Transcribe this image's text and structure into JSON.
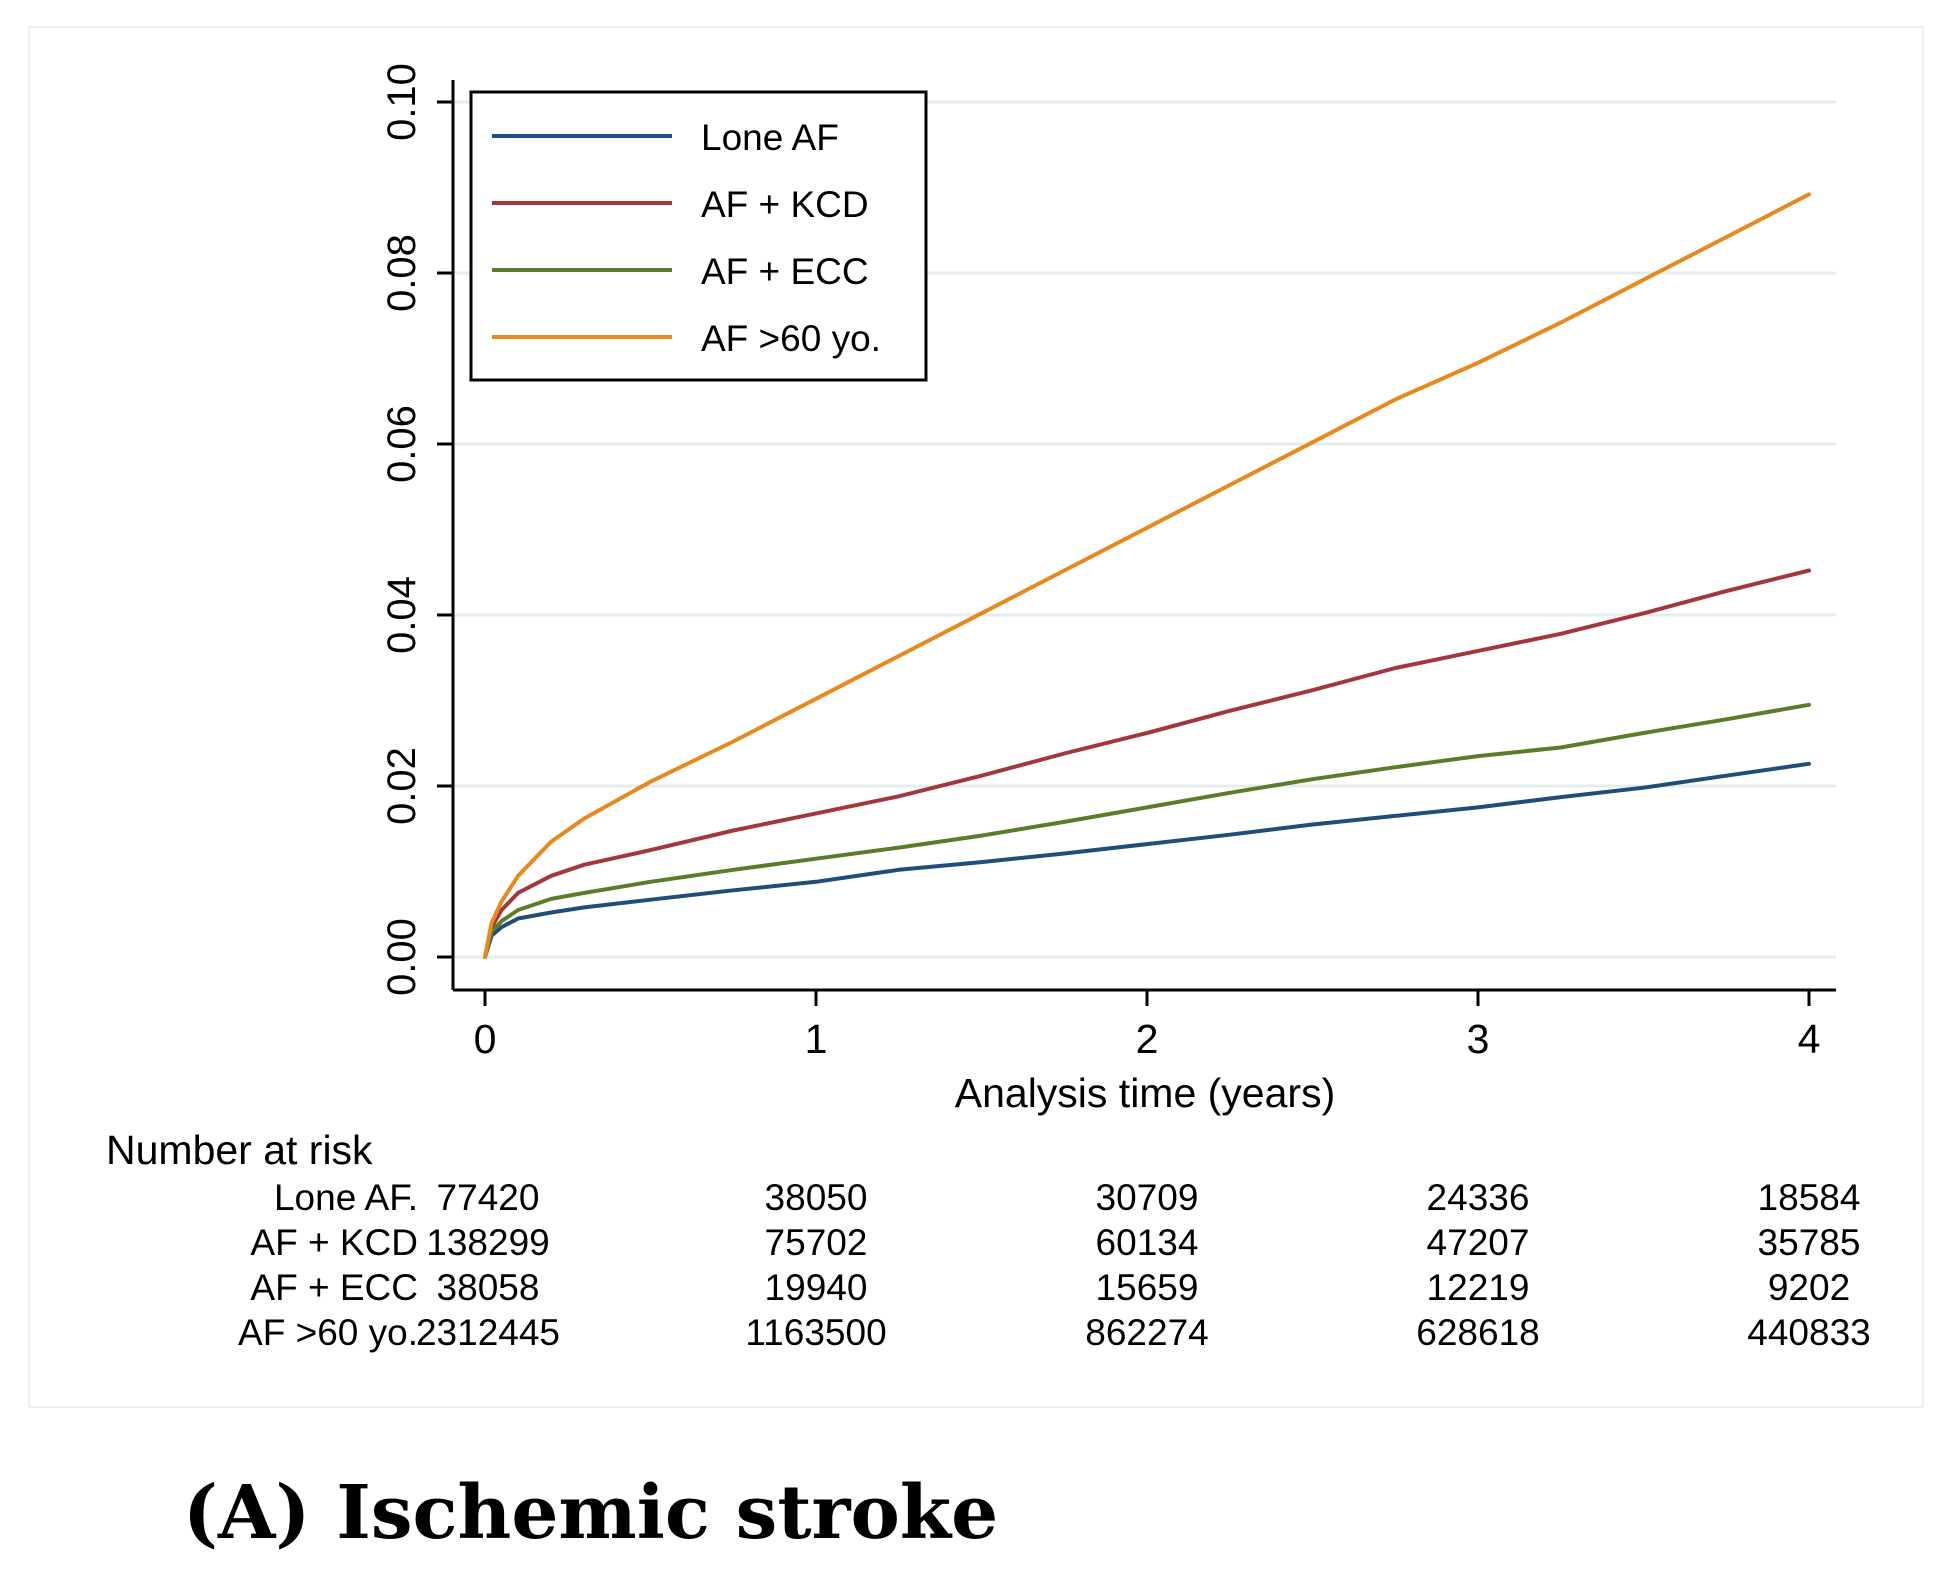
{
  "chart_data": {
    "type": "line",
    "title": "",
    "xlabel": "Analysis time (years)",
    "ylabel": "",
    "xlim": [
      0,
      4
    ],
    "ylim": [
      0,
      0.1
    ],
    "x_ticks": [
      0,
      1,
      2,
      3,
      4
    ],
    "x_tick_labels": [
      "0",
      "1",
      "2",
      "3",
      "4"
    ],
    "y_ticks": [
      0,
      0.02,
      0.04,
      0.06,
      0.08,
      0.1
    ],
    "y_tick_labels": [
      "0.00",
      "0.02",
      "0.04",
      "0.06",
      "0.08",
      "0.10"
    ],
    "grid": true,
    "legend_position": "top-left",
    "series": [
      {
        "name": "Lone AF",
        "color": "#1f4e79",
        "x": [
          0,
          0.02,
          0.05,
          0.1,
          0.2,
          0.3,
          0.5,
          0.75,
          1.0,
          1.25,
          1.5,
          1.75,
          2.0,
          2.25,
          2.5,
          2.75,
          3.0,
          3.25,
          3.5,
          3.75,
          4.0
        ],
        "y": [
          0,
          0.0025,
          0.0035,
          0.0045,
          0.0052,
          0.0058,
          0.0067,
          0.0078,
          0.0088,
          0.0102,
          0.0111,
          0.0121,
          0.0132,
          0.0143,
          0.0155,
          0.0165,
          0.0175,
          0.0187,
          0.0198,
          0.0212,
          0.0226
        ]
      },
      {
        "name": "AF + KCD",
        "color": "#a3373e",
        "x": [
          0,
          0.02,
          0.05,
          0.1,
          0.2,
          0.3,
          0.5,
          0.75,
          1.0,
          1.25,
          1.5,
          1.75,
          2.0,
          2.25,
          2.5,
          2.75,
          3.0,
          3.25,
          3.5,
          3.75,
          4.0
        ],
        "y": [
          0,
          0.0035,
          0.0055,
          0.0075,
          0.0095,
          0.0108,
          0.0125,
          0.0148,
          0.0168,
          0.0188,
          0.0212,
          0.0238,
          0.0262,
          0.0288,
          0.0312,
          0.0338,
          0.0358,
          0.0378,
          0.0402,
          0.0428,
          0.0452
        ]
      },
      {
        "name": "AF + ECC",
        "color": "#5b7c2b",
        "x": [
          0,
          0.02,
          0.05,
          0.1,
          0.2,
          0.3,
          0.5,
          0.75,
          1.0,
          1.25,
          1.5,
          1.75,
          2.0,
          2.25,
          2.5,
          2.75,
          3.0,
          3.25,
          3.5,
          3.75,
          4.0
        ],
        "y": [
          0,
          0.003,
          0.0042,
          0.0055,
          0.0068,
          0.0075,
          0.0088,
          0.0102,
          0.0115,
          0.0128,
          0.0142,
          0.0158,
          0.0175,
          0.0192,
          0.0208,
          0.0222,
          0.0235,
          0.0245,
          0.0262,
          0.0278,
          0.0295
        ]
      },
      {
        "name": "AF >60 yo.",
        "color": "#e8891d",
        "x": [
          0,
          0.02,
          0.05,
          0.1,
          0.2,
          0.3,
          0.5,
          0.75,
          1.0,
          1.25,
          1.5,
          1.75,
          2.0,
          2.25,
          2.5,
          2.75,
          3.0,
          3.25,
          3.5,
          3.75,
          4.0
        ],
        "y": [
          0,
          0.004,
          0.0065,
          0.0095,
          0.0135,
          0.0162,
          0.0205,
          0.0252,
          0.0302,
          0.0352,
          0.0402,
          0.0452,
          0.0502,
          0.0552,
          0.0602,
          0.0652,
          0.0695,
          0.0742,
          0.0792,
          0.0842,
          0.0892
        ]
      }
    ]
  },
  "risk_table": {
    "title": "Number at risk",
    "rows": [
      {
        "label": "Lone AF.",
        "values": [
          "77420",
          "38050",
          "30709",
          "24336",
          "18584"
        ]
      },
      {
        "label": "AF + KCD",
        "values": [
          "138299",
          "75702",
          "60134",
          "47207",
          "35785"
        ]
      },
      {
        "label": "AF + ECC",
        "values": [
          "38058",
          "19940",
          "15659",
          "12219",
          "9202"
        ]
      },
      {
        "label": "AF >60 yo.",
        "values": [
          "2312445",
          "1163500",
          "862274",
          "628618",
          "440833"
        ]
      }
    ]
  },
  "caption": "(A) Ischemic stroke"
}
